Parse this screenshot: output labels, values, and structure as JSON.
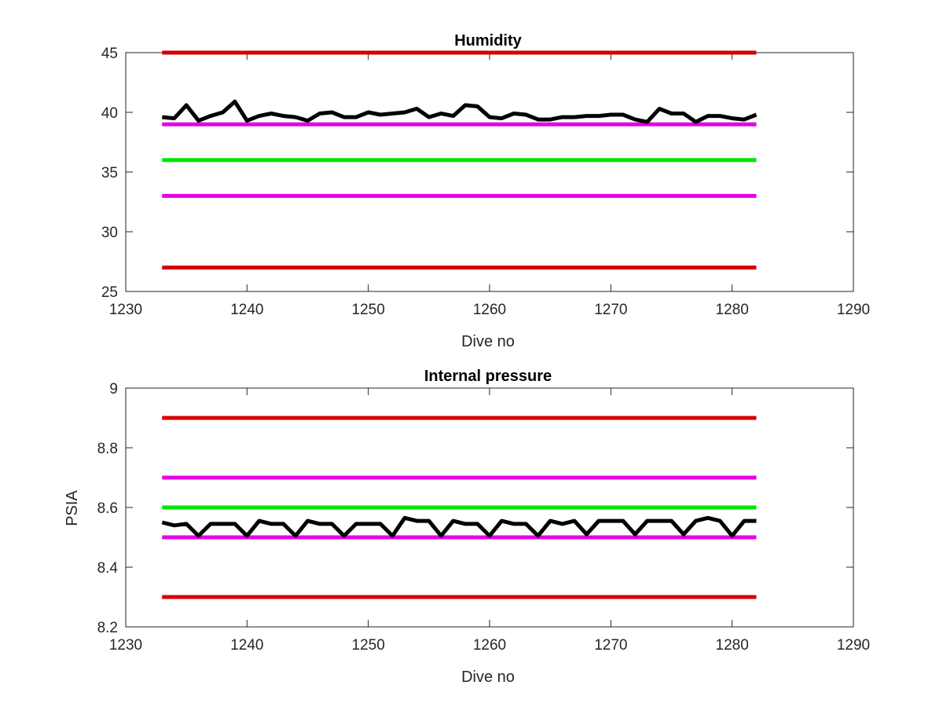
{
  "chart_data": [
    {
      "type": "line",
      "title": "Humidity",
      "xlabel": "Dive no",
      "ylabel": "",
      "xlim": [
        1230,
        1290
      ],
      "ylim": [
        25,
        45
      ],
      "xticks": [
        1230,
        1240,
        1250,
        1260,
        1270,
        1280,
        1290
      ],
      "yticks": [
        25,
        30,
        35,
        40,
        45
      ],
      "grid": false,
      "series": [
        {
          "color": "#000000",
          "x": [
            1233,
            1234,
            1235,
            1236,
            1237,
            1238,
            1239,
            1240,
            1241,
            1242,
            1243,
            1244,
            1245,
            1246,
            1247,
            1248,
            1249,
            1250,
            1251,
            1252,
            1253,
            1254,
            1255,
            1256,
            1257,
            1258,
            1259,
            1260,
            1261,
            1262,
            1263,
            1264,
            1265,
            1266,
            1267,
            1268,
            1269,
            1270,
            1271,
            1272,
            1273,
            1274,
            1275,
            1276,
            1277,
            1278,
            1279,
            1280,
            1281,
            1282
          ],
          "values": [
            39.6,
            39.5,
            40.6,
            39.3,
            39.7,
            40.0,
            40.9,
            39.3,
            39.7,
            39.9,
            39.7,
            39.6,
            39.3,
            39.9,
            40.0,
            39.6,
            39.6,
            40.0,
            39.8,
            39.9,
            40.0,
            40.3,
            39.6,
            39.9,
            39.7,
            40.6,
            40.5,
            39.6,
            39.5,
            39.9,
            39.8,
            39.4,
            39.4,
            39.6,
            39.6,
            39.7,
            39.7,
            39.8,
            39.8,
            39.4,
            39.2,
            40.3,
            39.9,
            39.9,
            39.2,
            39.7,
            39.7,
            39.5,
            39.4,
            39.8
          ]
        },
        {
          "color": "#d40000",
          "x": [
            1233,
            1282
          ],
          "values": [
            45,
            45
          ]
        },
        {
          "color": "#e600e6",
          "x": [
            1233,
            1282
          ],
          "values": [
            39,
            39
          ]
        },
        {
          "color": "#00e600",
          "x": [
            1233,
            1282
          ],
          "values": [
            36,
            36
          ]
        },
        {
          "color": "#e600e6",
          "x": [
            1233,
            1282
          ],
          "values": [
            33,
            33
          ]
        },
        {
          "color": "#d40000",
          "x": [
            1233,
            1282
          ],
          "values": [
            27,
            27
          ]
        }
      ]
    },
    {
      "type": "line",
      "title": "Internal pressure",
      "xlabel": "Dive no",
      "ylabel": "PSIA",
      "xlim": [
        1230,
        1290
      ],
      "ylim": [
        8.2,
        9
      ],
      "xticks": [
        1230,
        1240,
        1250,
        1260,
        1270,
        1280,
        1290
      ],
      "yticks": [
        "8.2",
        "8.4",
        "8.6",
        "8.8",
        "9"
      ],
      "grid": false,
      "series": [
        {
          "color": "#000000",
          "x": [
            1233,
            1234,
            1235,
            1236,
            1237,
            1238,
            1239,
            1240,
            1241,
            1242,
            1243,
            1244,
            1245,
            1246,
            1247,
            1248,
            1249,
            1250,
            1251,
            1252,
            1253,
            1254,
            1255,
            1256,
            1257,
            1258,
            1259,
            1260,
            1261,
            1262,
            1263,
            1264,
            1265,
            1266,
            1267,
            1268,
            1269,
            1270,
            1271,
            1272,
            1273,
            1274,
            1275,
            1276,
            1277,
            1278,
            1279,
            1280,
            1281,
            1282
          ],
          "values": [
            8.55,
            8.54,
            8.545,
            8.505,
            8.545,
            8.545,
            8.545,
            8.505,
            8.555,
            8.545,
            8.545,
            8.505,
            8.555,
            8.545,
            8.545,
            8.505,
            8.545,
            8.545,
            8.545,
            8.505,
            8.565,
            8.555,
            8.555,
            8.505,
            8.555,
            8.545,
            8.545,
            8.505,
            8.555,
            8.545,
            8.545,
            8.505,
            8.555,
            8.545,
            8.555,
            8.51,
            8.555,
            8.555,
            8.555,
            8.51,
            8.555,
            8.555,
            8.555,
            8.51,
            8.555,
            8.565,
            8.555,
            8.505,
            8.555,
            8.555
          ]
        },
        {
          "color": "#d40000",
          "x": [
            1233,
            1282
          ],
          "values": [
            8.9,
            8.9
          ]
        },
        {
          "color": "#e600e6",
          "x": [
            1233,
            1282
          ],
          "values": [
            8.7,
            8.7
          ]
        },
        {
          "color": "#00e600",
          "x": [
            1233,
            1282
          ],
          "values": [
            8.6,
            8.6
          ]
        },
        {
          "color": "#e600e6",
          "x": [
            1233,
            1282
          ],
          "values": [
            8.5,
            8.5
          ]
        },
        {
          "color": "#d40000",
          "x": [
            1233,
            1282
          ],
          "values": [
            8.3,
            8.3
          ]
        }
      ]
    }
  ]
}
